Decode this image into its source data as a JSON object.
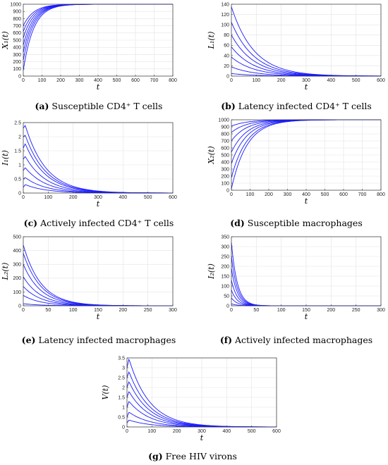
{
  "chart_data": [
    {
      "id": "a",
      "type": "line",
      "caption_letter": "(a)",
      "caption_text": "Susceptible CD4⁺ T cells",
      "ylabel": "X₁(t)",
      "xlabel": "t",
      "xlim": [
        0,
        800
      ],
      "ylim": [
        0,
        1000
      ],
      "xticks": [
        0,
        100,
        200,
        300,
        400,
        500,
        600,
        700,
        800
      ],
      "yticks": [
        0,
        100,
        200,
        300,
        400,
        500,
        600,
        700,
        800,
        900,
        1000
      ],
      "grid": true,
      "series_summary": {
        "model": "rise",
        "target": 1000,
        "initial_values": [
          80,
          220,
          330,
          430,
          530,
          620,
          700
        ],
        "rate": 0.018
      },
      "series": []
    },
    {
      "id": "b",
      "type": "line",
      "caption_letter": "(b)",
      "caption_text": "Latency infected CD4⁺ T cells",
      "ylabel": "L₁(t)",
      "xlabel": "t",
      "xlim": [
        0,
        600
      ],
      "ylim": [
        0,
        140
      ],
      "xticks": [
        0,
        100,
        200,
        300,
        400,
        500,
        600
      ],
      "yticks": [
        0,
        20,
        40,
        60,
        80,
        100,
        120,
        140
      ],
      "grid": true,
      "series_summary": {
        "model": "decay",
        "initial_values": [
          135,
          105,
          80,
          57,
          37,
          18,
          5
        ],
        "rate": 0.011
      },
      "series": []
    },
    {
      "id": "c",
      "type": "line",
      "caption_letter": "(c)",
      "caption_text": "Actively infected CD4⁺ T cells",
      "ylabel": "I₁(t)",
      "xlabel": "t",
      "xlim": [
        0,
        600
      ],
      "ylim": [
        0,
        2.5
      ],
      "xticks": [
        0,
        100,
        200,
        300,
        400,
        500,
        600
      ],
      "yticks": [
        0,
        0.5,
        1,
        1.5,
        2,
        2.5
      ],
      "grid": true,
      "series_summary": {
        "model": "spike-decay",
        "initial_values": [
          0.2,
          0.5,
          0.8,
          1.2,
          1.6,
          2.0,
          2.3
        ],
        "peak_values": [
          0.3,
          0.55,
          0.9,
          1.3,
          1.75,
          2.05,
          2.4
        ],
        "peak_t": 8,
        "rate": 0.012
      },
      "series": []
    },
    {
      "id": "d",
      "type": "line",
      "caption_letter": "(d)",
      "caption_text": "Susceptible macrophages",
      "ylabel": "X₂(t)",
      "xlabel": "t",
      "xlim": [
        0,
        800
      ],
      "ylim": [
        0,
        1000
      ],
      "xticks": [
        0,
        100,
        200,
        300,
        400,
        500,
        600,
        700,
        800
      ],
      "yticks": [
        0,
        100,
        200,
        300,
        400,
        500,
        600,
        700,
        800,
        900,
        1000
      ],
      "grid": true,
      "series_summary": {
        "model": "rise",
        "target": 1000,
        "initial_values": [
          20,
          180,
          380,
          540,
          700,
          820,
          910
        ],
        "rate": 0.012
      },
      "series": []
    },
    {
      "id": "e",
      "type": "line",
      "caption_letter": "(e)",
      "caption_text": "Latency infected macrophages",
      "ylabel": "L₂(t)",
      "xlabel": "t",
      "xlim": [
        0,
        300
      ],
      "ylim": [
        0,
        500
      ],
      "xticks": [
        0,
        50,
        100,
        150,
        200,
        250,
        300
      ],
      "yticks": [
        0,
        100,
        200,
        300,
        400,
        500
      ],
      "grid": true,
      "series_summary": {
        "model": "decay",
        "initial_values": [
          440,
          380,
          300,
          210,
          140,
          75,
          15
        ],
        "rate": 0.028
      },
      "series": []
    },
    {
      "id": "f",
      "type": "line",
      "caption_letter": "(f)",
      "caption_text": "Actively infected macrophages",
      "ylabel": "I₂(t)",
      "xlabel": "t",
      "xlim": [
        0,
        300
      ],
      "ylim": [
        0,
        350
      ],
      "xticks": [
        0,
        50,
        100,
        150,
        200,
        250,
        300
      ],
      "yticks": [
        0,
        50,
        100,
        150,
        200,
        250,
        300,
        350
      ],
      "grid": true,
      "series_summary": {
        "model": "decay",
        "initial_values": [
          320,
          250,
          190,
          130,
          80,
          40,
          10
        ],
        "rate": 0.085
      },
      "series": []
    },
    {
      "id": "g",
      "type": "line",
      "caption_letter": "(g)",
      "caption_text": "Free HIV virons",
      "ylabel": "V(t)",
      "xlabel": "t",
      "xlim": [
        0,
        600
      ],
      "ylim": [
        0,
        3.5
      ],
      "xticks": [
        0,
        100,
        200,
        300,
        400,
        500,
        600
      ],
      "yticks": [
        0,
        0.5,
        1,
        1.5,
        2,
        2.5,
        3,
        3.5
      ],
      "grid": true,
      "series_summary": {
        "model": "spike-decay",
        "initial_values": [
          0.2,
          0.5,
          1.0,
          1.5,
          2.0,
          2.5,
          3.0
        ],
        "peak_values": [
          0.35,
          0.75,
          1.3,
          1.8,
          2.3,
          2.8,
          3.45
        ],
        "peak_t": 8,
        "rate": 0.012
      },
      "series": []
    }
  ],
  "styles": {
    "line_color": "#1a1aff",
    "grid_color": "#e3e3e3",
    "frame_color": "#333333"
  }
}
